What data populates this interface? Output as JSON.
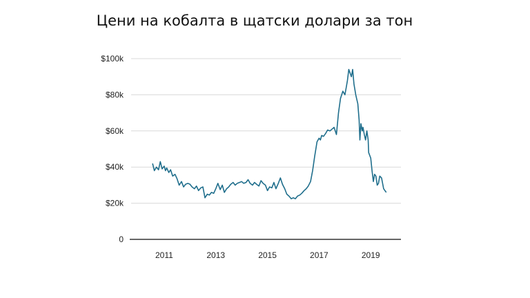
{
  "chart_data": {
    "type": "line",
    "title": "Цени на кобалта в щатски долари за тон",
    "xlabel": "",
    "ylabel": "",
    "xlim": [
      2010.0,
      2020.0
    ],
    "ylim": [
      0,
      100000
    ],
    "grid": true,
    "x_ticks": [
      {
        "value": 2011,
        "label": "2011"
      },
      {
        "value": 2013,
        "label": "2013"
      },
      {
        "value": 2015,
        "label": "2015"
      },
      {
        "value": 2017,
        "label": "2017"
      },
      {
        "value": 2019,
        "label": "2019"
      }
    ],
    "y_ticks": [
      {
        "value": 0,
        "label": "0"
      },
      {
        "value": 20000,
        "label": "$20k"
      },
      {
        "value": 40000,
        "label": "$40k"
      },
      {
        "value": 60000,
        "label": "$60k"
      },
      {
        "value": 80000,
        "label": "$80k"
      },
      {
        "value": 100000,
        "label": "$100k"
      }
    ],
    "colors": {
      "line": "#1f6e8c",
      "grid": "#d9d9d9",
      "axis": "#333333"
    },
    "series": [
      {
        "x": [
          2010.55,
          2010.62,
          2010.7,
          2010.78,
          2010.85,
          2010.92,
          2011.0,
          2011.05,
          2011.1,
          2011.18,
          2011.25,
          2011.33,
          2011.42,
          2011.5,
          2011.58,
          2011.67,
          2011.75,
          2011.83,
          2011.92,
          2012.0,
          2012.08,
          2012.17,
          2012.25,
          2012.33,
          2012.42,
          2012.5,
          2012.58,
          2012.67,
          2012.75,
          2012.83,
          2012.92,
          2013.0,
          2013.08,
          2013.17,
          2013.25,
          2013.33,
          2013.42,
          2013.5,
          2013.58,
          2013.67,
          2013.75,
          2013.83,
          2013.92,
          2014.0,
          2014.08,
          2014.17,
          2014.25,
          2014.33,
          2014.42,
          2014.5,
          2014.58,
          2014.67,
          2014.75,
          2014.83,
          2014.92,
          2015.0,
          2015.08,
          2015.17,
          2015.25,
          2015.33,
          2015.42,
          2015.5,
          2015.58,
          2015.67,
          2015.75,
          2015.83,
          2015.92,
          2016.0,
          2016.08,
          2016.17,
          2016.25,
          2016.33,
          2016.42,
          2016.5,
          2016.58,
          2016.67,
          2016.75,
          2016.83,
          2016.92,
          2017.0,
          2017.05,
          2017.1,
          2017.17,
          2017.25,
          2017.33,
          2017.42,
          2017.5,
          2017.58,
          2017.67,
          2017.75,
          2017.83,
          2017.92,
          2018.0,
          2018.05,
          2018.1,
          2018.15,
          2018.2,
          2018.25,
          2018.3,
          2018.35,
          2018.42,
          2018.5,
          2018.55,
          2018.58,
          2018.62,
          2018.67,
          2018.7,
          2018.75,
          2018.8,
          2018.85,
          2018.9,
          2018.92,
          2019.0,
          2019.05,
          2019.1,
          2019.15,
          2019.2,
          2019.25,
          2019.3,
          2019.35,
          2019.42,
          2019.5,
          2019.55,
          2019.6
        ],
        "values": [
          42000,
          38000,
          40000,
          38500,
          43000,
          39000,
          40500,
          38000,
          39500,
          37000,
          38500,
          35000,
          36000,
          33500,
          30000,
          32000,
          29000,
          30500,
          31000,
          30500,
          29000,
          28000,
          29500,
          27000,
          28500,
          29000,
          23000,
          25000,
          24500,
          26000,
          25500,
          28000,
          31000,
          27500,
          30000,
          26000,
          28000,
          29000,
          30500,
          31500,
          30000,
          31000,
          31500,
          32000,
          31000,
          31500,
          33000,
          31000,
          30000,
          31500,
          30500,
          29500,
          32500,
          31000,
          30000,
          27000,
          29000,
          28500,
          31500,
          28000,
          31000,
          34000,
          30500,
          28000,
          25000,
          24000,
          22500,
          23000,
          22500,
          24000,
          24500,
          25500,
          27000,
          28000,
          29500,
          32000,
          38000,
          46000,
          54000,
          56000,
          55000,
          57500,
          57000,
          58500,
          60500,
          60000,
          61000,
          62000,
          58000,
          70000,
          78000,
          82000,
          80000,
          84000,
          88000,
          94000,
          92000,
          90000,
          94000,
          86000,
          80000,
          75000,
          66000,
          55000,
          64000,
          60000,
          62000,
          58000,
          55000,
          60000,
          55000,
          48000,
          45000,
          38000,
          32000,
          36000,
          35000,
          30000,
          31000,
          35000,
          34000,
          28000,
          27000,
          26000
        ]
      }
    ]
  }
}
